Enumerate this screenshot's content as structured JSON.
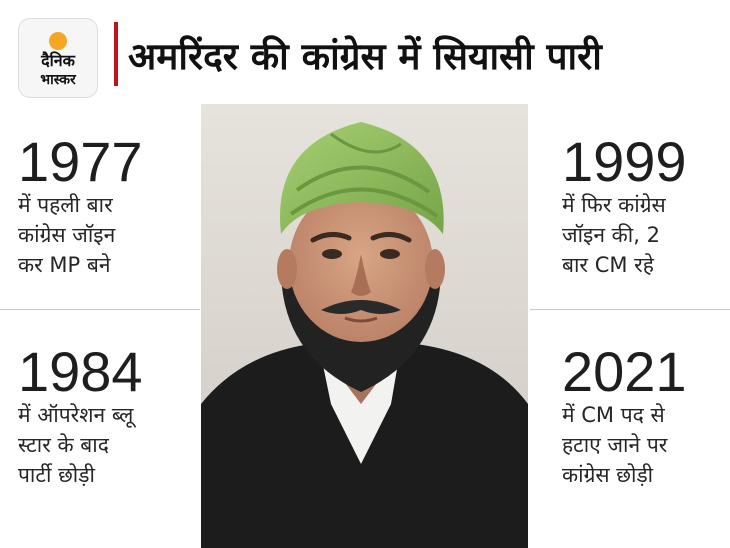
{
  "logo": {
    "line1": "दैनिक",
    "line2": "भास्कर",
    "sun_color": "#f5a623"
  },
  "title": "अमरिंदर की कांग्रेस में सियासी पारी",
  "accent_color": "#c1121f",
  "facts": [
    {
      "year": "1977",
      "lines": [
        "में पहली बार",
        "कांग्रेस जॉइन",
        "कर MP बने"
      ]
    },
    {
      "year": "1999",
      "lines": [
        "में फिर कांग्रेस",
        "जॉइन की, 2",
        "बार CM रहे"
      ]
    },
    {
      "year": "1984",
      "lines": [
        "में ऑपरेशन ब्लू",
        "स्टार के बाद",
        "पार्टी छोड़ी"
      ]
    },
    {
      "year": "2021",
      "lines": [
        "में CM पद से",
        "हटाए जाने पर",
        "कांग्रेस छोड़ी"
      ]
    }
  ],
  "photo": {
    "turban_color": "#8fbf5a",
    "jacket_color": "#1c1c1c"
  }
}
